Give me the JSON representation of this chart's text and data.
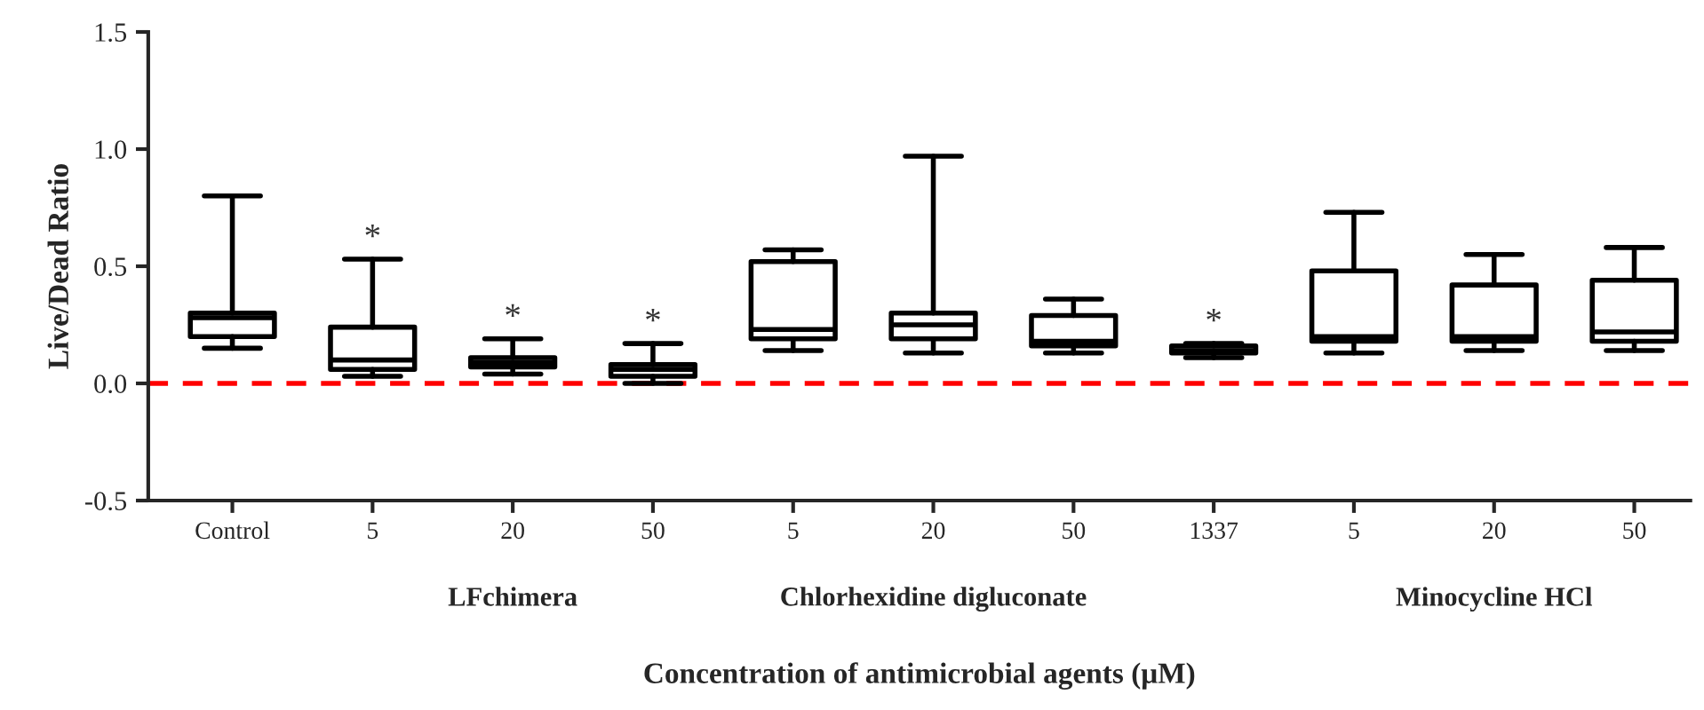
{
  "chart_data": {
    "type": "box",
    "xlabel": "Concentration of antimicrobial agents (μM)",
    "ylabel": "Live/Dead Ratio",
    "categories": [
      "Control",
      "5",
      "20",
      "50",
      "5",
      "20",
      "50",
      "1337",
      "5",
      "20",
      "50"
    ],
    "boxes": [
      {
        "low": 0.15,
        "q1": 0.2,
        "median": 0.28,
        "q3": 0.3,
        "high": 0.8
      },
      {
        "low": 0.03,
        "q1": 0.06,
        "median": 0.1,
        "q3": 0.24,
        "high": 0.53
      },
      {
        "low": 0.04,
        "q1": 0.07,
        "median": 0.09,
        "q3": 0.11,
        "high": 0.19
      },
      {
        "low": 0.0,
        "q1": 0.03,
        "median": 0.06,
        "q3": 0.08,
        "high": 0.17
      },
      {
        "low": 0.14,
        "q1": 0.19,
        "median": 0.23,
        "q3": 0.52,
        "high": 0.57
      },
      {
        "low": 0.13,
        "q1": 0.19,
        "median": 0.25,
        "q3": 0.3,
        "high": 0.97
      },
      {
        "low": 0.13,
        "q1": 0.16,
        "median": 0.18,
        "q3": 0.29,
        "high": 0.36
      },
      {
        "low": 0.11,
        "q1": 0.13,
        "median": 0.14,
        "q3": 0.16,
        "high": 0.17
      },
      {
        "low": 0.13,
        "q1": 0.18,
        "median": 0.2,
        "q3": 0.48,
        "high": 0.73
      },
      {
        "low": 0.14,
        "q1": 0.18,
        "median": 0.2,
        "q3": 0.42,
        "high": 0.55
      },
      {
        "low": 0.14,
        "q1": 0.18,
        "median": 0.22,
        "q3": 0.44,
        "high": 0.58
      }
    ],
    "value_labels": [
      null,
      "*",
      "*",
      "*",
      null,
      null,
      null,
      "*",
      null,
      null,
      null
    ],
    "color": "#000000",
    "ylim": [
      -0.5,
      1.5
    ],
    "yticks": [
      {
        "value": -0.5,
        "label": "-0.5"
      },
      {
        "value": 0,
        "label": "0.0"
      },
      {
        "value": 0.5,
        "label": "0.5"
      },
      {
        "value": 1,
        "label": "1.0"
      },
      {
        "value": 1.5,
        "label": "1.5"
      }
    ],
    "ref_lines": [
      {
        "axis": "y",
        "value": 0,
        "color": "#ff0000",
        "line_style": "dashed"
      }
    ],
    "annotations": [
      "LFchimera",
      "Chlorhexidine digluconate",
      "Minocycline HCl"
    ],
    "grid": false,
    "legend": false
  }
}
